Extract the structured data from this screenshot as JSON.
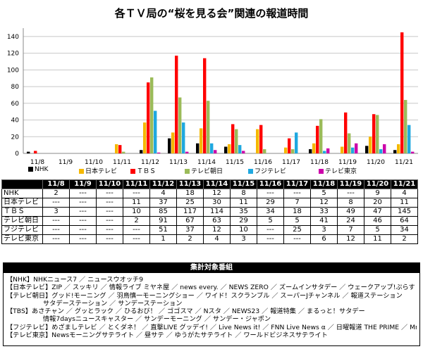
{
  "title": "各ＴＶ局の“桜を見る会”関連の報道時間",
  "chart_data": {
    "type": "bar",
    "title": "各ＴＶ局の“桜を見る会”関連の報道時間",
    "categories": [
      "11/8",
      "11/9",
      "11/10",
      "11/11",
      "11/12",
      "11/13",
      "11/14",
      "11/15",
      "11/16",
      "11/17",
      "11/18",
      "11/19",
      "11/20",
      "11/21"
    ],
    "ylim": [
      0,
      150
    ],
    "yticks": [
      0,
      20,
      40,
      60,
      80,
      100,
      120,
      140
    ],
    "grid": true,
    "legend_position": "bottom",
    "series": [
      {
        "name": "NHK",
        "color": "#000000",
        "values": [
          2,
          0,
          0,
          0,
          4,
          18,
          12,
          8,
          0,
          0,
          5,
          0,
          9,
          4
        ]
      },
      {
        "name": "日本テレビ",
        "color": "#f5b800",
        "values": [
          0,
          0,
          0,
          11,
          37,
          25,
          30,
          11,
          29,
          7,
          12,
          8,
          20,
          11
        ]
      },
      {
        "name": "ＴＢＳ",
        "color": "#ff0000",
        "values": [
          3,
          0,
          0,
          10,
          85,
          117,
          114,
          35,
          34,
          18,
          33,
          49,
          47,
          145
        ]
      },
      {
        "name": "テレビ朝日",
        "color": "#9bbb59",
        "values": [
          0,
          0,
          0,
          2,
          91,
          67,
          63,
          29,
          5,
          5,
          41,
          24,
          46,
          64
        ]
      },
      {
        "name": "フジテレビ",
        "color": "#1fa8e0",
        "values": [
          0,
          0,
          0,
          0,
          51,
          37,
          12,
          10,
          0,
          25,
          3,
          7,
          5,
          34
        ]
      },
      {
        "name": "テレビ東京",
        "color": "#cc00aa",
        "values": [
          0,
          0,
          0,
          0,
          1,
          2,
          4,
          3,
          0,
          0,
          6,
          12,
          11,
          2
        ]
      }
    ]
  },
  "table": {
    "headers": [
      "11/8",
      "11/9",
      "11/10",
      "11/11",
      "11/12",
      "11/13",
      "11/14",
      "11/15",
      "11/16",
      "11/17",
      "11/18",
      "11/19",
      "11/20",
      "11/21"
    ],
    "rows": [
      {
        "label": "NHK",
        "cells": [
          "2",
          "---",
          "---",
          "---",
          "4",
          "18",
          "12",
          "8",
          "---",
          "---",
          "5",
          "---",
          "9",
          "4"
        ]
      },
      {
        "label": "日本テレビ",
        "cells": [
          "---",
          "---",
          "---",
          "11",
          "37",
          "25",
          "30",
          "11",
          "29",
          "7",
          "12",
          "8",
          "20",
          "11"
        ]
      },
      {
        "label": "ＴＢＳ",
        "cells": [
          "3",
          "---",
          "---",
          "10",
          "85",
          "117",
          "114",
          "35",
          "34",
          "18",
          "33",
          "49",
          "47",
          "145"
        ]
      },
      {
        "label": "テレビ朝日",
        "cells": [
          "---",
          "---",
          "---",
          "2",
          "91",
          "67",
          "63",
          "29",
          "5",
          "5",
          "41",
          "24",
          "46",
          "64"
        ]
      },
      {
        "label": "フジテレビ",
        "cells": [
          "---",
          "---",
          "---",
          "---",
          "51",
          "37",
          "12",
          "10",
          "---",
          "25",
          "3",
          "7",
          "5",
          "34"
        ]
      },
      {
        "label": "テレビ東京",
        "cells": [
          "---",
          "---",
          "---",
          "---",
          "1",
          "2",
          "4",
          "3",
          "---",
          "---",
          "6",
          "12",
          "11",
          "2"
        ]
      }
    ]
  },
  "programs": {
    "title": "集計対象番組",
    "lines": [
      "【NHK】NHKニュース7 ／ ニュースウオッチ9",
      "【日本テレビ】ZIP ／ スッキリ ／ 情報ライブ ミヤネ屋 ／ news every. ／ NEWS ZERO ／ ズームインサタデー ／ ウェークアップ!ぷらす ／ シューイチ",
      "【テレビ朝日】グッド!モーニング ／ 羽鳥慎一モーニングショー ／ ワイド！スクランブル ／ スーパーJチャンネル ／ 報道ステーション",
      "サタデーステーション ／ サンデーステーション",
      "【TBS】あさチャン ／ グッとラック ／ ひるおび！ ／ ゴゴスマ ／ Nスタ ／ NEWS23 ／ 報道特集 ／ まるっと！サタデー",
      "情報7daysニュースキャスター ／ サンデーモーニング ／ サンデー・ジャポン",
      "【フジテレビ】めざましテレビ ／ とくダネ！ ／ 直撃LIVE グッデイ! ／ Live News it! ／ FNN Live News α ／ 日曜報道 THE PRIME ／ Mr.サンデー",
      "【テレビ東京】Newsモーニングサテライト ／ 昼サテ ／ ゆうがたサテライト ／ ワールドビジネスサテライト"
    ]
  }
}
